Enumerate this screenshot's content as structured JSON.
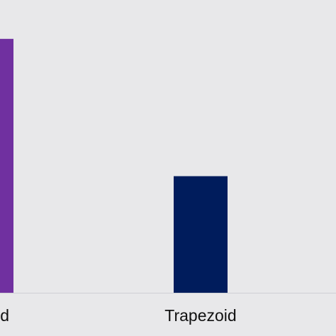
{
  "chart_data": {
    "type": "bar",
    "categories": [
      "d",
      "Trapezoid"
    ],
    "values": [
      98,
      45
    ],
    "colors": [
      "#7030a0",
      "#001c5c"
    ],
    "ylim": [
      0,
      113
    ],
    "grid": false,
    "legend": "none",
    "background": "#e8e8ea",
    "axis_color": "#cfcfd4"
  }
}
